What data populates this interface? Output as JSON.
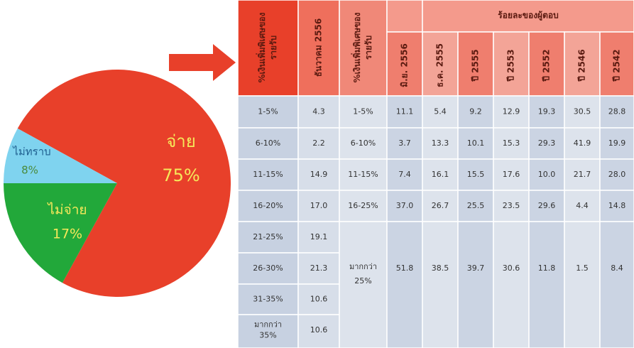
{
  "chart_data": {
    "type": "pie",
    "categories": [
      "จ่าย",
      "ไม่จ่าย",
      "ไม่ทราบ"
    ],
    "values": [
      75,
      17,
      8
    ],
    "value_labels": [
      "75%",
      "17%",
      "8%"
    ],
    "colors": [
      "#e8402a",
      "#22a83a",
      "#7fd3ef"
    ]
  },
  "table": {
    "left_header": [
      [
        "%เงินเพิ่มพิเศษของ",
        "รายรับ"
      ],
      [
        "ธันวาคม 2556"
      ]
    ],
    "right_header": [
      "%เงินเพิ่มพิเศษของ",
      "รายรับ"
    ],
    "group_header": "ร้อยละของผู้ตอบ",
    "sub_headers": [
      "มิ.ย. 2556",
      "ธ.ค. 2555",
      "ปี 2555",
      "ปี 2553",
      "ปี 2552",
      "ปี 2546",
      "ปี 2542"
    ],
    "left_rows": [
      [
        "1-5%",
        "4.3"
      ],
      [
        "6-10%",
        "2.2"
      ],
      [
        "11-15%",
        "14.9"
      ],
      [
        "16-20%",
        "17.0"
      ],
      [
        "21-25%",
        "19.1"
      ],
      [
        "26-30%",
        "21.3"
      ],
      [
        "31-35%",
        "10.6"
      ],
      [
        [
          "มากกว่า",
          "35%"
        ],
        "10.6"
      ]
    ],
    "right_rows": [
      [
        "1-5%",
        "11.1",
        "5.4",
        "9.2",
        "12.9",
        "19.3",
        "30.5",
        "28.8"
      ],
      [
        "6-10%",
        "3.7",
        "13.3",
        "10.1",
        "15.3",
        "29.3",
        "41.9",
        "19.9"
      ],
      [
        "11-15%",
        "7.4",
        "16.1",
        "15.5",
        "17.6",
        "10.0",
        "21.7",
        "28.0"
      ],
      [
        "16-25%",
        "37.0",
        "26.7",
        "25.5",
        "23.5",
        "29.6",
        "4.4",
        "14.8"
      ],
      [
        [
          "มากกว่า",
          "25%"
        ],
        "51.8",
        "38.5",
        "39.7",
        "30.6",
        "11.8",
        "1.5",
        "8.4"
      ]
    ]
  }
}
